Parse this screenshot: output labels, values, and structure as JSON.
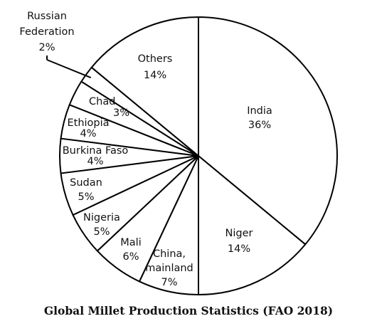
{
  "chart_data": {
    "type": "pie",
    "title": "Global Millet Production Statistics (FAO 2018)",
    "start_angle_deg": 0,
    "direction": "clockwise",
    "slices": [
      {
        "label": "India",
        "value_label": "36%",
        "value": 36
      },
      {
        "label": "Niger",
        "value_label": "14%",
        "value": 14
      },
      {
        "label": "China, mainland",
        "value_label": "7%",
        "value": 7
      },
      {
        "label": "Mali",
        "value_label": "6%",
        "value": 6
      },
      {
        "label": "Nigeria",
        "value_label": "5%",
        "value": 5
      },
      {
        "label": "Sudan",
        "value_label": "5%",
        "value": 5
      },
      {
        "label": "Burkina Faso",
        "value_label": "4%",
        "value": 4
      },
      {
        "label": "Ethiopia",
        "value_label": "4%",
        "value": 4
      },
      {
        "label": "Chad",
        "value_label": "3%",
        "value": 3
      },
      {
        "label": "Russian Federation",
        "value_label": "2%",
        "value": 2
      },
      {
        "label": "Others",
        "value_label": "14%",
        "value": 14
      }
    ],
    "colors": {
      "fill": "#ffffff",
      "stroke": "#000000"
    }
  }
}
